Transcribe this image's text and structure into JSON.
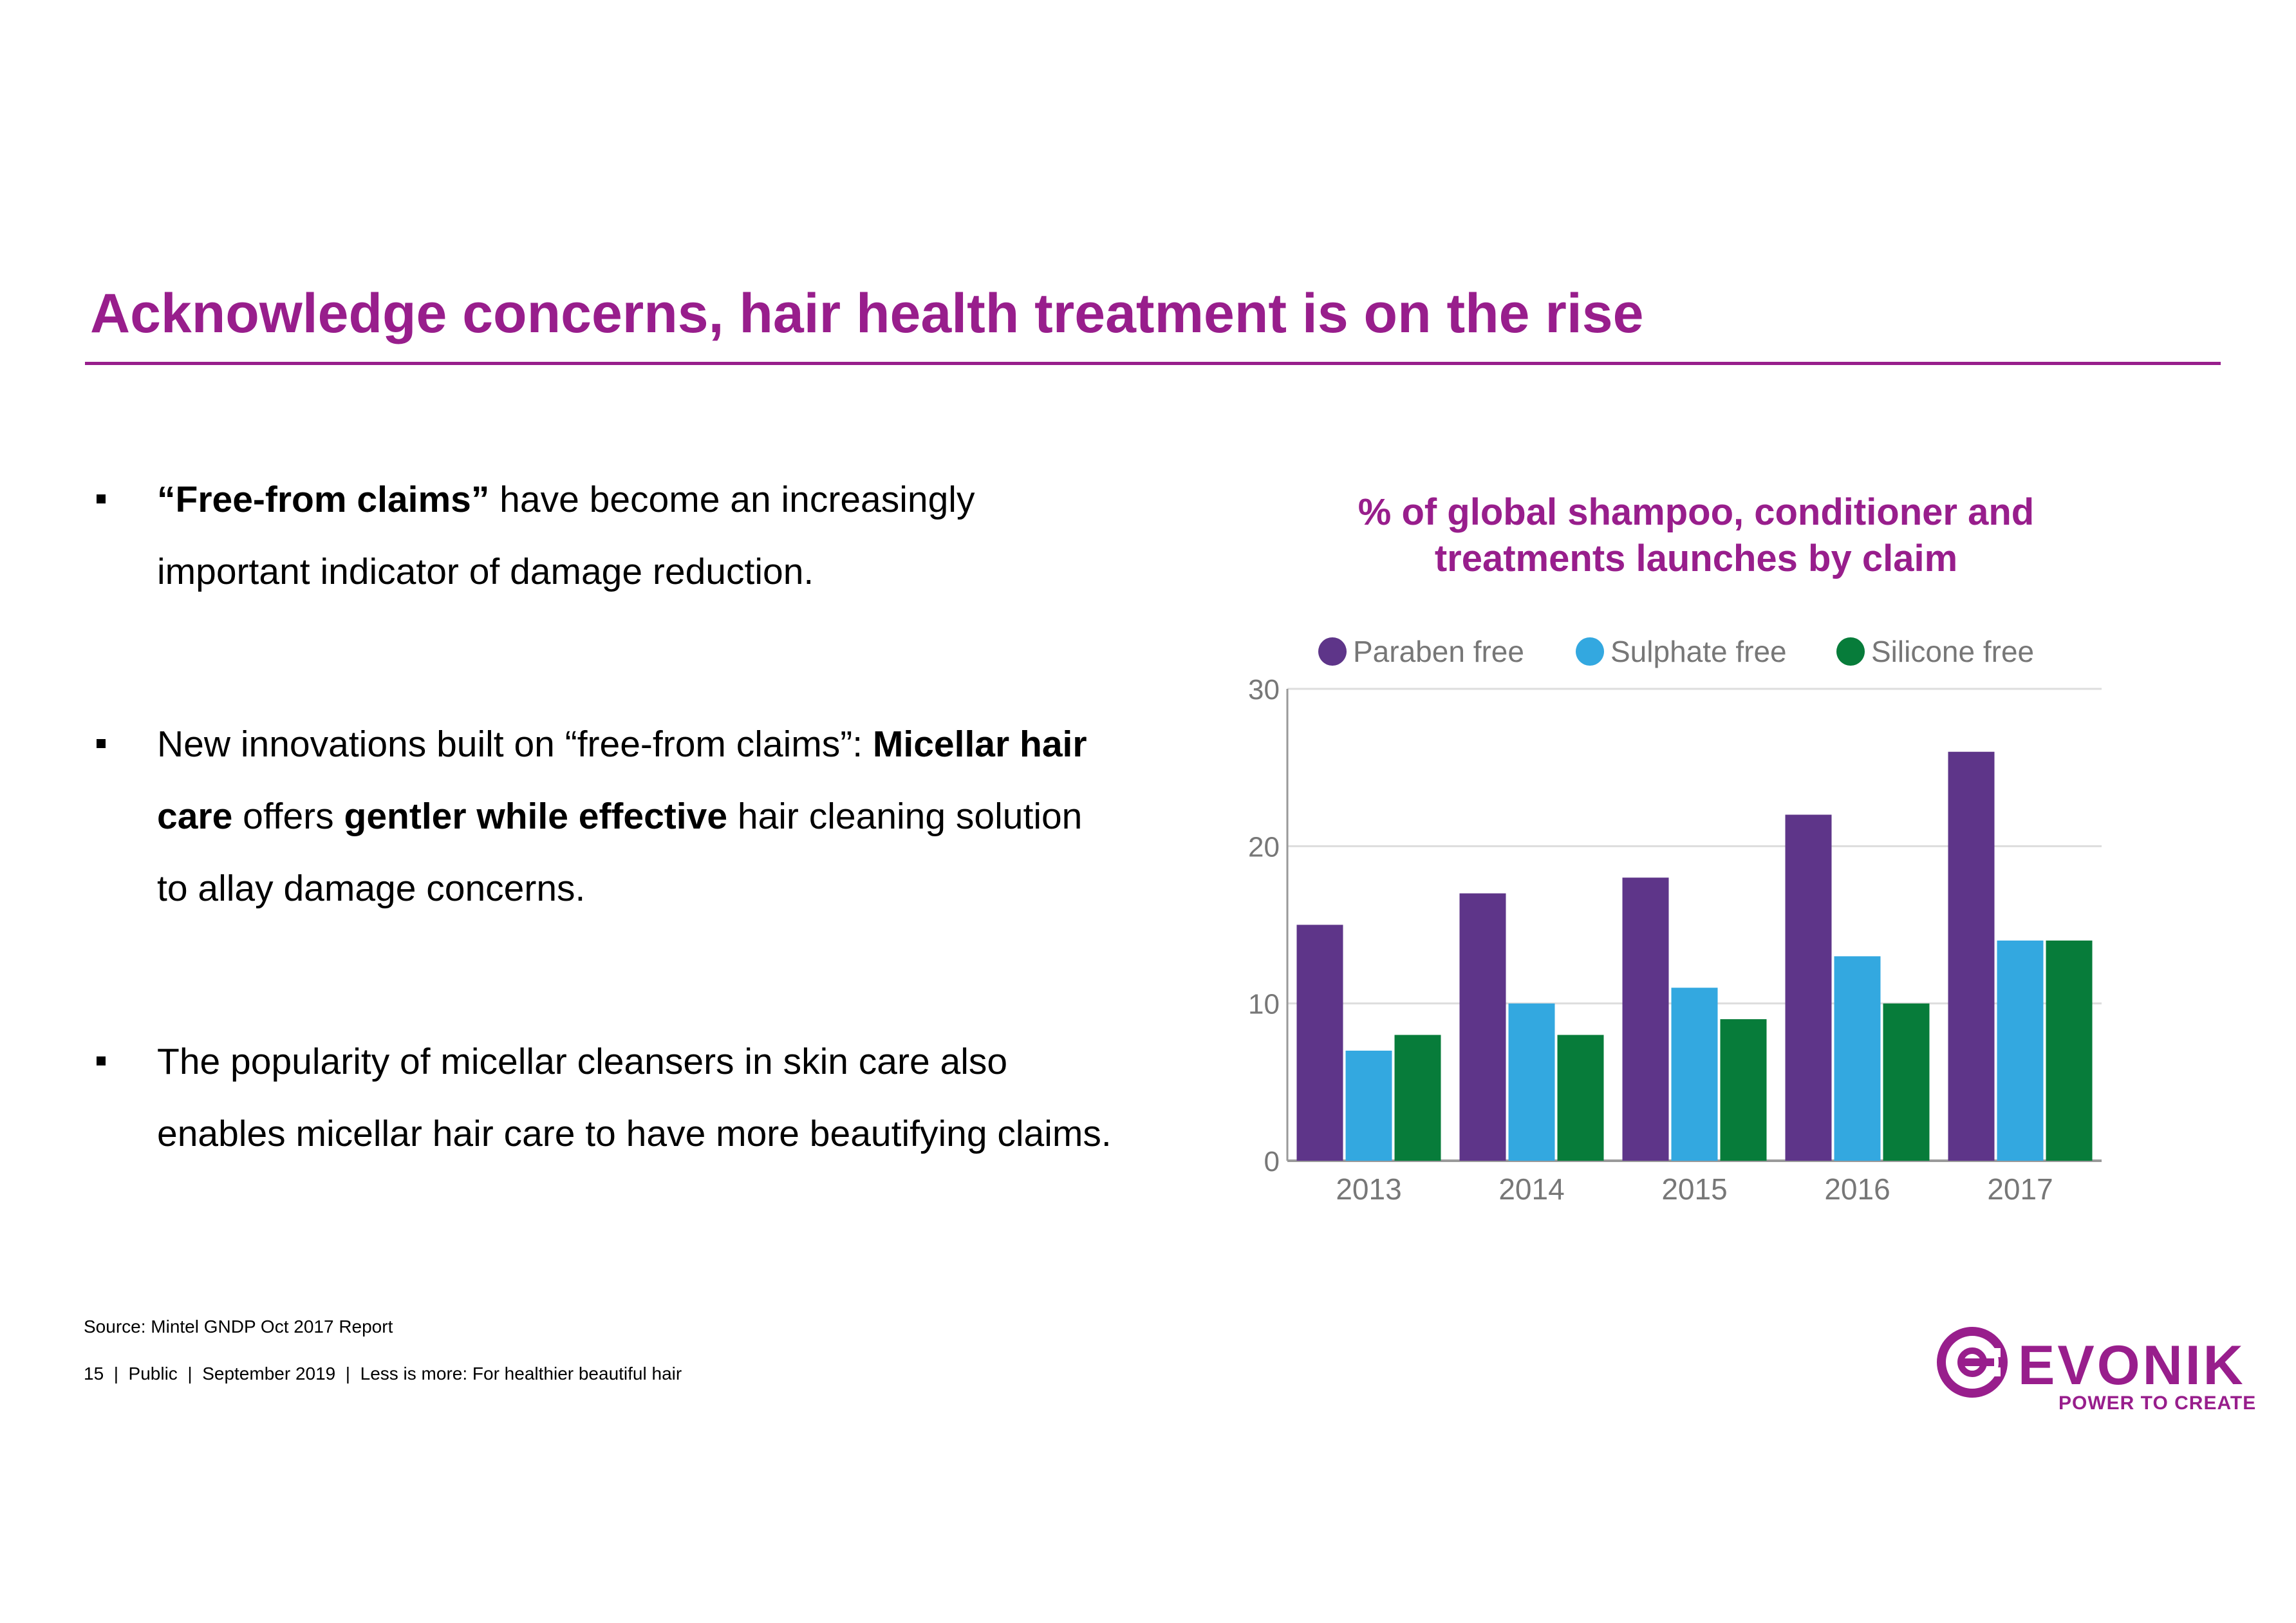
{
  "slide": {
    "title": "Acknowledge concerns, hair health treatment is on the rise",
    "accent_color": "#981E8C"
  },
  "bullets": [
    {
      "line1_bold": "“Free-from claims”",
      "line1_rest": " have become an increasingly",
      "line2": "important indicator of damage reduction."
    },
    {
      "line1_text": "New innovations built on “free-from claims”: ",
      "line1_bold": "Micellar hair",
      "line2_bold": "care",
      "line2_text": " offers ",
      "line2_bold2": "gentler while effective",
      "line2_rest": " hair cleaning solution",
      "line3": "to allay damage concerns."
    },
    {
      "line1": "The popularity of micellar cleansers in skin care also",
      "line2": "enables micellar hair care to have more beautifying claims."
    }
  ],
  "chart_heading": {
    "line1": "% of global shampoo, conditioner and",
    "line2": "treatments launches by claim"
  },
  "chart_data": {
    "type": "bar",
    "categories": [
      "2013",
      "2014",
      "2015",
      "2016",
      "2017"
    ],
    "series": [
      {
        "name": "Paraben free",
        "color": "#5E3589",
        "values": [
          15,
          17,
          18,
          22,
          26
        ]
      },
      {
        "name": "Sulphate free",
        "color": "#33A8E0",
        "values": [
          7,
          10,
          11,
          13,
          14
        ]
      },
      {
        "name": "Silicone free",
        "color": "#077C3A",
        "values": [
          8,
          8,
          9,
          10,
          14
        ]
      }
    ],
    "ylim": [
      0,
      30
    ],
    "yticks": [
      0,
      10,
      20,
      30
    ],
    "grid": true,
    "legend": "top"
  },
  "footer": {
    "source": "Source: Mintel GNDP Oct 2017 Report",
    "page_number": "15",
    "meta": "  |  Public  |  September 2019  |  Less is more: For healthier beautiful hair"
  },
  "logo": {
    "wordmark": "EVONIK",
    "tagline": "POWER TO CREATE",
    "icon": "evonik-e-logo-icon"
  }
}
